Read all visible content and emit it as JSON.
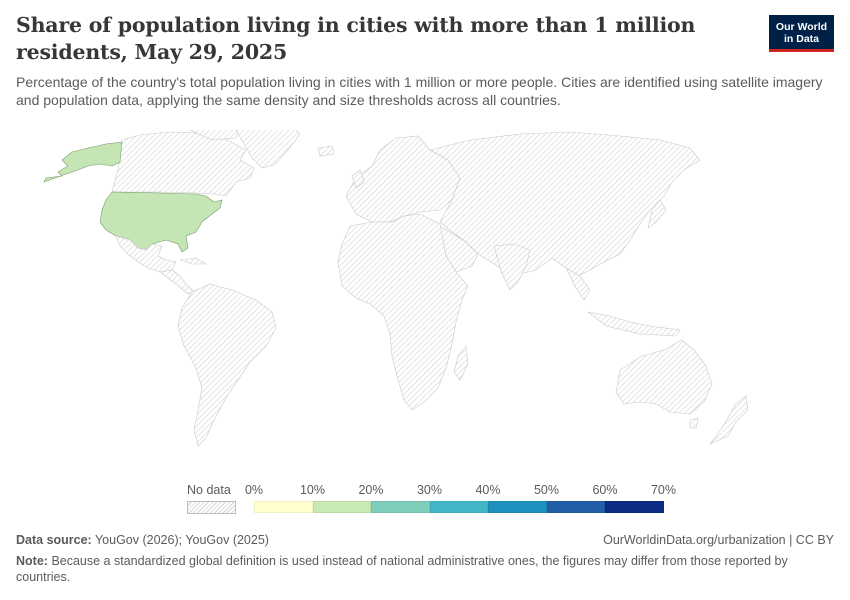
{
  "header": {
    "title": "Share of population living in cities with more than 1 million residents, May 29, 2025",
    "subtitle": "Percentage of the country's total population living in cities with 1 million or more people. Cities are identified using satellite imagery and population data, applying the same density and size thresholds across all countries."
  },
  "logo": {
    "line1": "Our World",
    "line2": "in Data"
  },
  "map_data": {
    "metric": "share_population_cities_over_1m_pct",
    "countries": [
      {
        "name": "United States",
        "value_bin": "10-20",
        "color": "#c5e6b4"
      }
    ],
    "no_data_color": "#f5f5f5"
  },
  "legend": {
    "no_data_label": "No data",
    "ticks": [
      "0%",
      "10%",
      "20%",
      "30%",
      "40%",
      "50%",
      "60%",
      "70%"
    ],
    "bin_colors": [
      "#ffffcc",
      "#c7e9b4",
      "#7fcdbb",
      "#41b6c4",
      "#1d91c0",
      "#225ea8",
      "#0c2c84"
    ]
  },
  "footer": {
    "source_label": "Data source:",
    "source_text": "YouGov (2026); YouGov (2025)",
    "url": "OurWorldinData.org/urbanization | CC BY",
    "note_label": "Note:",
    "note_text": "Because a standardized global definition is used instead of national administrative ones, the figures may differ from those reported by countries."
  }
}
